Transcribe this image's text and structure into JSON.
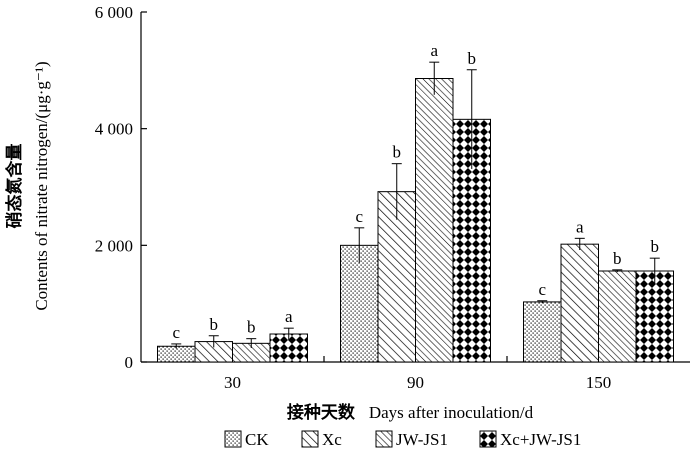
{
  "chart_data": {
    "type": "bar",
    "categories": [
      "30",
      "90",
      "150"
    ],
    "series": [
      {
        "name": "CK",
        "pattern": "dots",
        "values": [
          270,
          2000,
          1030
        ],
        "errors": [
          40,
          300,
          20
        ],
        "letters": [
          "c",
          "c",
          "c"
        ]
      },
      {
        "name": "Xc",
        "pattern": "hatch-fine",
        "values": [
          350,
          2920,
          2020
        ],
        "errors": [
          100,
          480,
          100
        ],
        "letters": [
          "b",
          "b",
          "a"
        ]
      },
      {
        "name": "JW-JS1",
        "pattern": "hatch-wide",
        "values": [
          320,
          4860,
          1560
        ],
        "errors": [
          80,
          280,
          20
        ],
        "letters": [
          "b",
          "a",
          "b"
        ]
      },
      {
        "name": "Xc+JW-JS1",
        "pattern": "diamond",
        "values": [
          480,
          4160,
          1560
        ],
        "errors": [
          100,
          850,
          220
        ],
        "letters": [
          "a",
          "b",
          "b"
        ]
      }
    ],
    "ylim": [
      0,
      6000
    ],
    "yticks": [
      0,
      2000,
      4000,
      6000
    ],
    "ytick_labels": [
      "0",
      "2 000",
      "4 000",
      "6 000"
    ],
    "ylabel_cn": "硝态氮含量",
    "ylabel_en": "Contents of nitrate nitrogen/(μg·g⁻¹)",
    "xlabel_cn": "接种天数",
    "xlabel_en": "Days after inoculation/d",
    "legend_position": "bottom",
    "grid": false
  }
}
